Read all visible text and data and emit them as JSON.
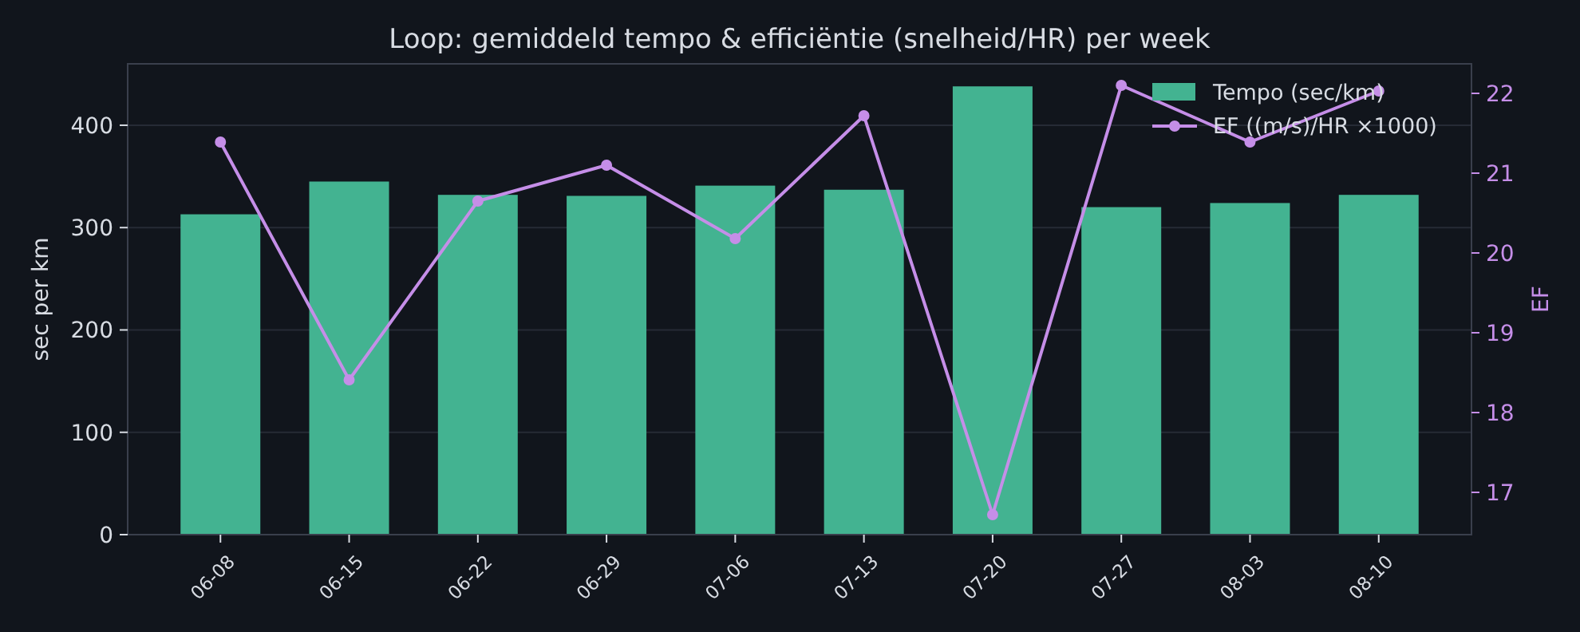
{
  "chart_data": {
    "type": "bar",
    "title": "Loop: gemiddeld tempo & efficiëntie (snelheid/HR) per week",
    "ylabel": "sec per km",
    "y2label": "EF",
    "categories": [
      "06-08",
      "06-15",
      "06-22",
      "06-29",
      "07-06",
      "07-13",
      "07-20",
      "07-27",
      "08-03",
      "08-10"
    ],
    "series": [
      {
        "name": "Tempo (sec/km)",
        "color": "#43b391",
        "values": [
          313,
          345,
          332,
          331,
          341,
          337,
          438,
          320,
          324,
          332
        ]
      },
      {
        "name": "EF ((m/s)/HR ×1000)",
        "type": "line",
        "axis": "y2",
        "color": "#c58ee8",
        "marker": "circle",
        "values": [
          21.39,
          18.41,
          20.65,
          21.1,
          20.18,
          21.72,
          16.72,
          22.1,
          21.39,
          22.03
        ]
      }
    ],
    "ylim": [
      0,
      460
    ],
    "yticks": [
      0,
      100,
      200,
      300,
      400
    ],
    "y2lim": [
      16.47,
      22.37
    ],
    "y2ticks": [
      17,
      18,
      19,
      20,
      21,
      22
    ],
    "grid": "y",
    "legend": "top right"
  }
}
